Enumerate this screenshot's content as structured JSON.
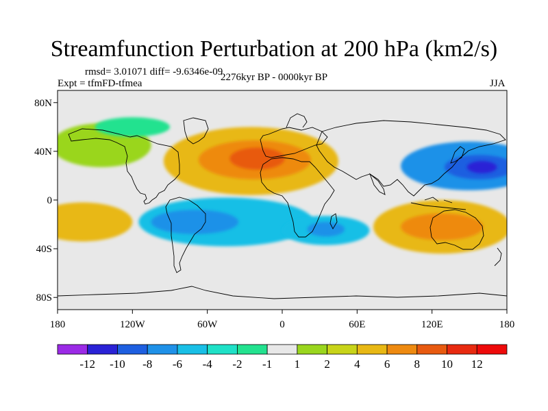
{
  "title": "Streamfunction Perturbation at 200 hPa (km2/s)",
  "stats": "rmsd= 3.01071 diff= -9.6346e-09",
  "experiment": "Expt = tfmFD-tfmea",
  "period": "2276kyr BP - 0000kyr BP",
  "season": "JJA",
  "axes": {
    "lat_labels": [
      "80N",
      "40N",
      "0",
      "40S",
      "80S"
    ],
    "lon_labels": [
      "180",
      "120W",
      "60W",
      "0",
      "60E",
      "120E",
      "180"
    ]
  },
  "colorbar": {
    "labels": [
      "-12",
      "-10",
      "-8",
      "-6",
      "-4",
      "-2",
      "-1",
      "1",
      "2",
      "4",
      "6",
      "8",
      "10",
      "12"
    ],
    "colors": [
      "#9b2ae6",
      "#2a22d6",
      "#1e5fe0",
      "#1f91e8",
      "#19bfe6",
      "#1fe1c7",
      "#23e28f",
      "#e8e8e8",
      "#9ad61e",
      "#c8d419",
      "#e8b814",
      "#ee8a10",
      "#e85a10",
      "#e82a10",
      "#ee0a0a"
    ]
  },
  "field": {
    "background": "#e8e8e8",
    "blobs": [
      {
        "name": "n-atlantic-africa-high",
        "color": "#e8b814",
        "rx": 70,
        "ry": 28,
        "lon": -25,
        "lat": 32
      },
      {
        "name": "n-atlantic-africa-core",
        "color": "#ee8a10",
        "rx": 45,
        "ry": 16,
        "lon": -22,
        "lat": 33
      },
      {
        "name": "n-atlantic-africa-inner",
        "color": "#e85a10",
        "rx": 22,
        "ry": 9,
        "lon": -20,
        "lat": 34
      },
      {
        "name": "nw-pacific-low",
        "color": "#1f91e8",
        "rx": 55,
        "ry": 20,
        "lon": 150,
        "lat": 28
      },
      {
        "name": "nw-pacific-low-core",
        "color": "#1e5fe0",
        "rx": 28,
        "ry": 10,
        "lon": 158,
        "lat": 27
      },
      {
        "name": "nw-pacific-low-inner",
        "color": "#2a22d6",
        "rx": 12,
        "ry": 5,
        "lon": 160,
        "lat": 27
      },
      {
        "name": "s-atlantic-low",
        "color": "#19bfe6",
        "rx": 70,
        "ry": 20,
        "lon": -45,
        "lat": -18
      },
      {
        "name": "s-atlantic-low-core",
        "color": "#1f91e8",
        "rx": 35,
        "ry": 10,
        "lon": -70,
        "lat": -18
      },
      {
        "name": "s-indian-low",
        "color": "#19bfe6",
        "rx": 35,
        "ry": 12,
        "lon": 35,
        "lat": -25
      },
      {
        "name": "s-indian-low-core",
        "color": "#1f91e8",
        "rx": 15,
        "ry": 6,
        "lon": 35,
        "lat": -24
      },
      {
        "name": "australia-high",
        "color": "#e8b814",
        "rx": 55,
        "ry": 22,
        "lon": 128,
        "lat": -22
      },
      {
        "name": "australia-high-core",
        "color": "#ee8a10",
        "rx": 33,
        "ry": 11,
        "lon": 128,
        "lat": -22
      },
      {
        "name": "s-pacific-high",
        "color": "#e8b814",
        "rx": 40,
        "ry": 16,
        "lon": -160,
        "lat": -18
      },
      {
        "name": "n-pacific-high",
        "color": "#9ad61e",
        "rx": 40,
        "ry": 18,
        "lon": -145,
        "lat": 45
      },
      {
        "name": "arctic-low",
        "color": "#23e28f",
        "rx": 30,
        "ry": 8,
        "lon": -120,
        "lat": 60
      }
    ]
  }
}
